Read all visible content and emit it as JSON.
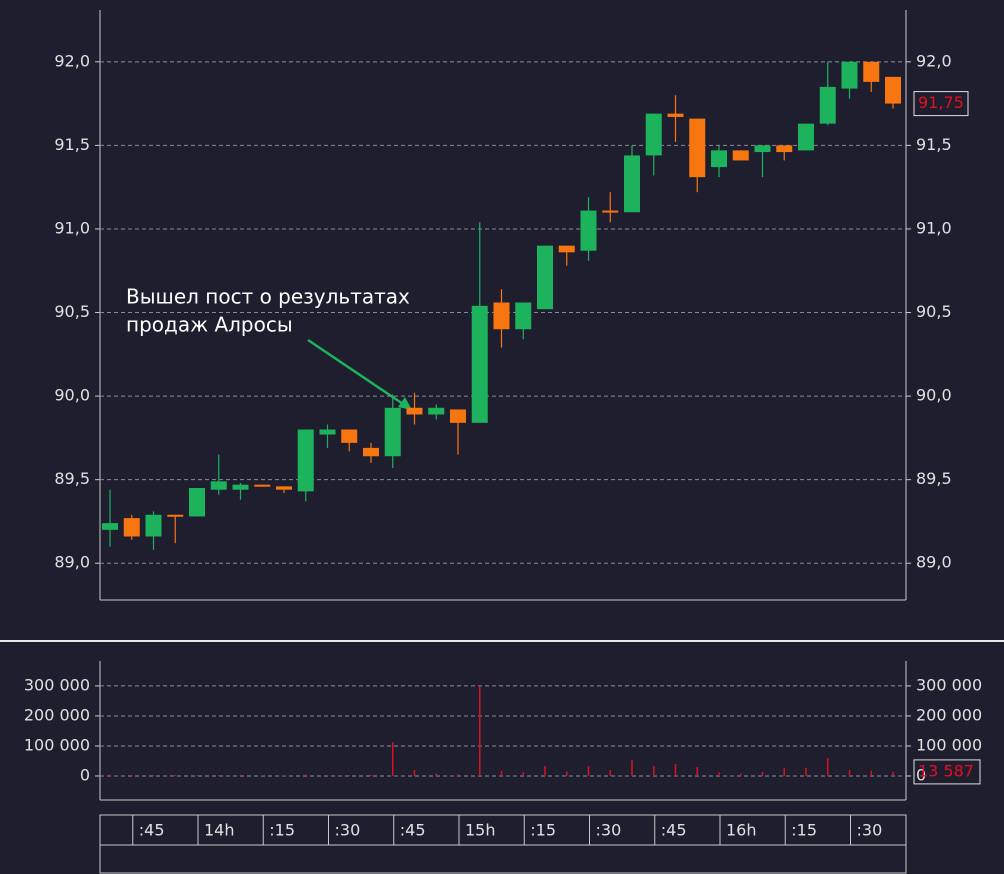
{
  "chart_data": [
    {
      "type": "candlestick",
      "categories": [
        null,
        ":45",
        null,
        null,
        "14h",
        null,
        null,
        ":15",
        null,
        null,
        ":30",
        null,
        null,
        ":45",
        null,
        null,
        "15h",
        null,
        null,
        ":15",
        null,
        null,
        ":30",
        null,
        null,
        ":45",
        null,
        null,
        "16h",
        null,
        null,
        ":15",
        null,
        null,
        ":30",
        null,
        null
      ],
      "open": [
        89.2,
        89.27,
        89.16,
        89.29,
        89.28,
        89.44,
        89.44,
        89.47,
        89.46,
        89.43,
        89.77,
        89.8,
        89.69,
        89.64,
        89.93,
        89.89,
        89.92,
        89.84,
        90.56,
        90.4,
        90.52,
        90.9,
        90.87,
        91.11,
        91.1,
        91.44,
        91.69,
        91.66,
        91.37,
        91.47,
        91.46,
        91.5,
        91.47,
        91.63,
        91.84,
        92.0,
        91.91
      ],
      "high": [
        89.44,
        89.29,
        89.31,
        89.29,
        89.45,
        89.65,
        89.48,
        89.47,
        89.46,
        89.8,
        89.83,
        89.8,
        89.72,
        90.01,
        90.02,
        89.95,
        89.92,
        91.04,
        90.64,
        90.56,
        90.9,
        90.9,
        91.19,
        91.22,
        91.5,
        91.69,
        91.8,
        91.66,
        91.5,
        91.47,
        91.5,
        91.5,
        91.63,
        92.0,
        92.0,
        92.0,
        91.91
      ],
      "low": [
        89.1,
        89.14,
        89.08,
        89.12,
        89.28,
        89.41,
        89.38,
        89.46,
        89.42,
        89.37,
        89.69,
        89.67,
        89.6,
        89.57,
        89.83,
        89.86,
        89.65,
        89.84,
        90.29,
        90.34,
        90.52,
        90.78,
        90.81,
        91.04,
        91.1,
        91.32,
        91.52,
        91.22,
        91.31,
        91.41,
        91.31,
        91.41,
        91.47,
        91.62,
        91.78,
        91.82,
        91.72
      ],
      "close": [
        89.24,
        89.16,
        89.29,
        89.28,
        89.45,
        89.49,
        89.47,
        89.46,
        89.44,
        89.8,
        89.8,
        89.72,
        89.64,
        89.93,
        89.89,
        89.93,
        89.84,
        90.54,
        90.4,
        90.56,
        90.9,
        90.86,
        91.11,
        91.1,
        91.44,
        91.69,
        91.67,
        91.31,
        91.47,
        91.41,
        91.5,
        91.46,
        91.63,
        91.85,
        92.0,
        91.88,
        91.75
      ],
      "up_color": "#1db35c",
      "down_color": "#f7760f",
      "last_label": "91,75",
      "ylim": [
        88.78,
        92.31
      ],
      "yticks": [
        {
          "value": 89,
          "label": "89,0"
        },
        {
          "value": 89.5,
          "label": "89,5"
        },
        {
          "value": 90,
          "label": "90,0"
        },
        {
          "value": 90.5,
          "label": "90,5"
        },
        {
          "value": 91,
          "label": "91,0"
        },
        {
          "value": 91.5,
          "label": "91,5"
        },
        {
          "value": 92,
          "label": "92,0"
        }
      ],
      "grid": true,
      "annotation": [
        "Вышел пост о результатах",
        "продаж Алросы"
      ]
    },
    {
      "type": "bar",
      "values": [
        5000,
        4000,
        3000,
        3000,
        2000,
        3000,
        4000,
        2000,
        2000,
        5000,
        3000,
        3000,
        4000,
        113000,
        20000,
        8000,
        6000,
        300000,
        18000,
        12000,
        33000,
        15000,
        33000,
        20000,
        53000,
        33000,
        40000,
        30000,
        12000,
        8000,
        14000,
        27000,
        27000,
        60000,
        20000,
        18000,
        13587
      ],
      "color": "#d9121f",
      "last_label": "13 587",
      "ylim": [
        -80000,
        383000
      ],
      "yticks": [
        0,
        {
          "value": 100000,
          "label": "100 000"
        },
        {
          "value": 200000,
          "label": "200 000"
        },
        {
          "value": 300000,
          "label": "300 000"
        }
      ],
      "grid": true
    }
  ]
}
